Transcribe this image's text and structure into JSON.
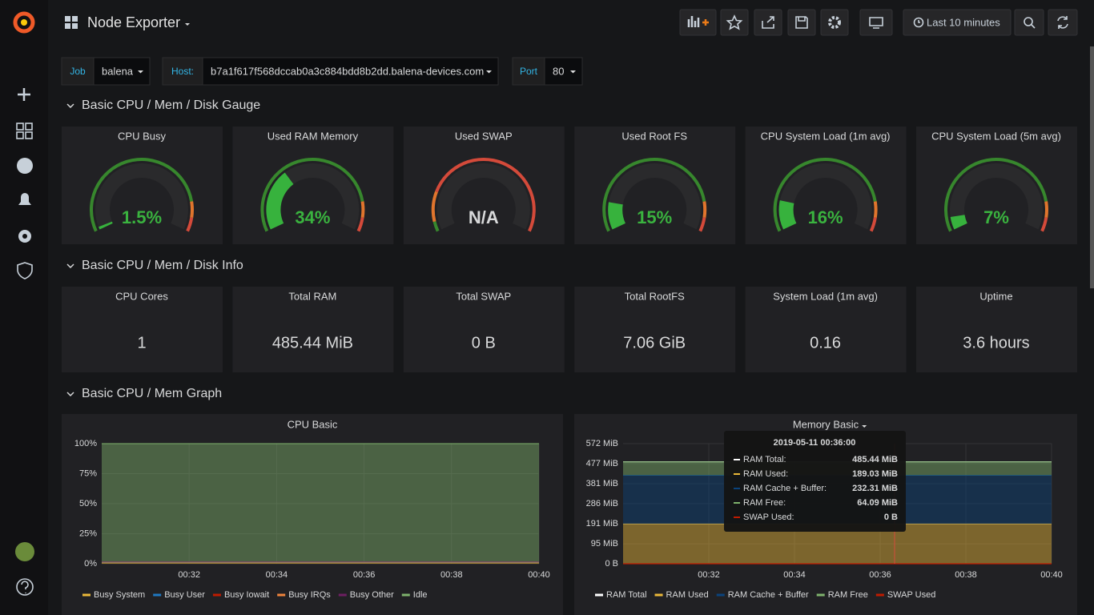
{
  "header": {
    "title": "Node Exporter",
    "time_range": "Last 10 minutes"
  },
  "variables": [
    {
      "label": "Job",
      "value": "balena"
    },
    {
      "label": "Host:",
      "value": "b7a1f617f568dccab0a3c884bdd8b2dd.balena-devices.com"
    },
    {
      "label": "Port",
      "value": "80"
    }
  ],
  "rows": [
    {
      "title": "Basic CPU / Mem / Disk Gauge"
    },
    {
      "title": "Basic CPU / Mem / Disk Info"
    },
    {
      "title": "Basic CPU / Mem Graph"
    }
  ],
  "gauges": [
    {
      "title": "CPU Busy",
      "value": 1.5,
      "value_label": "1.5%"
    },
    {
      "title": "Used RAM Memory",
      "value": 34,
      "value_label": "34%"
    },
    {
      "title": "Used SWAP",
      "value": null,
      "value_label": "N/A"
    },
    {
      "title": "Used Root FS",
      "value": 15,
      "value_label": "15%"
    },
    {
      "title": "CPU System Load (1m avg)",
      "value": 16,
      "value_label": "16%"
    },
    {
      "title": "CPU System Load (5m avg)",
      "value": 7,
      "value_label": "7%"
    }
  ],
  "stats": [
    {
      "title": "CPU Cores",
      "value": "1"
    },
    {
      "title": "Total RAM",
      "value": "485.44 MiB"
    },
    {
      "title": "Total SWAP",
      "value": "0 B"
    },
    {
      "title": "Total RootFS",
      "value": "7.06 GiB"
    },
    {
      "title": "System Load (1m avg)",
      "value": "0.16"
    },
    {
      "title": "Uptime",
      "value": "3.6 hours"
    }
  ],
  "graphs": [
    {
      "title": "CPU Basic",
      "ylim": [
        0,
        100
      ],
      "yticks": [
        {
          "value": 0,
          "label": "0%"
        },
        {
          "value": 25,
          "label": "25%"
        },
        {
          "value": 50,
          "label": "50%"
        },
        {
          "value": 75,
          "label": "75%"
        },
        {
          "value": 100,
          "label": "100%"
        }
      ],
      "xticks": [
        "00:32",
        "00:34",
        "00:36",
        "00:38",
        "00:40"
      ],
      "series": [
        {
          "name": "Busy System",
          "color": "#eab839",
          "value": 0.8,
          "stack": true
        },
        {
          "name": "Busy User",
          "color": "#1f78c1",
          "value": 0.7,
          "stack": true
        },
        {
          "name": "Busy Iowait",
          "color": "#bf1b00",
          "value": 0.1,
          "stack": true
        },
        {
          "name": "Busy IRQs",
          "color": "#ef843c",
          "value": 0,
          "stack": true
        },
        {
          "name": "Busy Other",
          "color": "#6d1f62",
          "value": 0,
          "stack": true
        },
        {
          "name": "Idle",
          "color": "#7eb26d",
          "value": 98.4,
          "stack": true
        }
      ]
    },
    {
      "title": "Memory Basic",
      "ylim": [
        0,
        572
      ],
      "yticks": [
        {
          "value": 0,
          "label": "0 B"
        },
        {
          "value": 95,
          "label": "95 MiB"
        },
        {
          "value": 191,
          "label": "191 MiB"
        },
        {
          "value": 286,
          "label": "286 MiB"
        },
        {
          "value": 381,
          "label": "381 MiB"
        },
        {
          "value": 477,
          "label": "477 MiB"
        },
        {
          "value": 572,
          "label": "572 MiB"
        }
      ],
      "xticks": [
        "00:32",
        "00:34",
        "00:36",
        "00:38",
        "00:40"
      ],
      "series": [
        {
          "name": "RAM Total",
          "color": "#ffffff",
          "value": 485.44,
          "stack": false
        },
        {
          "name": "RAM Used",
          "color": "#eab839",
          "value": 189.03,
          "stack": true
        },
        {
          "name": "RAM Cache + Buffer",
          "color": "#0a437c",
          "value": 232.31,
          "stack": true
        },
        {
          "name": "RAM Free",
          "color": "#7eb26d",
          "value": 64.09,
          "stack": true
        },
        {
          "name": "SWAP Used",
          "color": "#bf1b00",
          "value": 0,
          "stack": false
        }
      ],
      "tooltip": {
        "time": "2019-05-11 00:36:00",
        "rows": [
          {
            "name": "RAM Total:",
            "value": "485.44 MiB"
          },
          {
            "name": "RAM Used:",
            "value": "189.03 MiB"
          },
          {
            "name": "RAM Cache + Buffer:",
            "value": "232.31 MiB"
          },
          {
            "name": "RAM Free:",
            "value": "64.09 MiB"
          },
          {
            "name": "SWAP Used:",
            "value": "0 B"
          }
        ]
      }
    }
  ]
}
